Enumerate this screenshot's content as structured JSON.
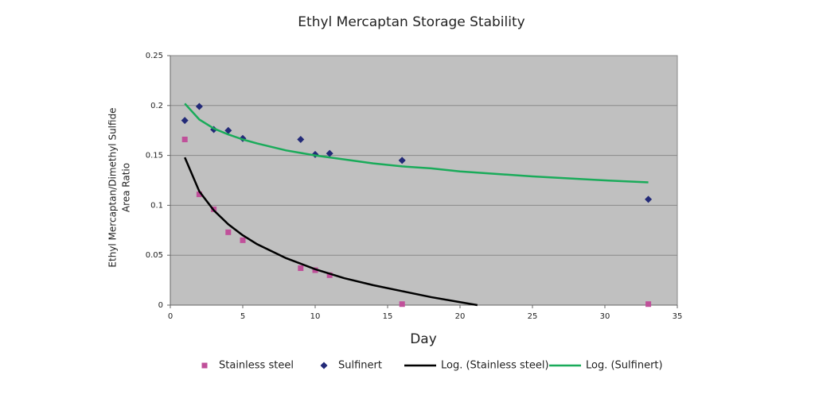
{
  "chart_data": {
    "type": "scatter",
    "title": "Ethyl Mercaptan Storage Stability",
    "xlabel": "Day",
    "ylabel": [
      "Ethyl Mercaptan/Dimethyl Sulfide",
      "Area Ratio"
    ],
    "xlim": [
      0,
      35
    ],
    "xticks": [
      0,
      5,
      10,
      15,
      20,
      25,
      30,
      35
    ],
    "ylim": [
      0,
      0.25
    ],
    "yticks": [
      0,
      0.05,
      0.1,
      0.15,
      0.2,
      0.25
    ],
    "grid": true,
    "background": "#c0c0c0",
    "legend": "bottom",
    "series": [
      {
        "name": "Stainless steel",
        "color": "#c0509a",
        "mode": "markers",
        "marker": "square",
        "x": [
          1,
          2,
          3,
          4,
          5,
          9,
          10,
          11,
          16,
          33
        ],
        "values": [
          0.166,
          0.111,
          0.096,
          0.073,
          0.065,
          0.037,
          0.035,
          0.03,
          0.001,
          0.001
        ]
      },
      {
        "name": "Sulfinert",
        "color": "#232a78",
        "mode": "markers",
        "marker": "diamond",
        "x": [
          1,
          2,
          3,
          4,
          5,
          9,
          10,
          11,
          16,
          33
        ],
        "values": [
          0.185,
          0.199,
          0.176,
          0.175,
          0.167,
          0.166,
          0.151,
          0.152,
          0.145,
          0.106
        ]
      },
      {
        "name": "Log. (Stainless steel)",
        "color": "#000000",
        "mode": "line",
        "x": [
          1,
          2,
          3,
          4,
          5,
          6,
          8,
          10,
          12,
          14,
          16,
          18,
          20,
          21.2
        ],
        "values": [
          0.148,
          0.114,
          0.095,
          0.081,
          0.07,
          0.061,
          0.047,
          0.036,
          0.027,
          0.02,
          0.014,
          0.008,
          0.003,
          0
        ]
      },
      {
        "name": "Log. (Sulfinert)",
        "color": "#1aab5a",
        "mode": "line",
        "x": [
          1,
          2,
          3,
          4,
          5,
          6,
          8,
          10,
          12,
          14,
          16,
          18,
          20,
          25,
          30,
          33
        ],
        "values": [
          0.202,
          0.186,
          0.177,
          0.171,
          0.166,
          0.162,
          0.155,
          0.15,
          0.146,
          0.142,
          0.139,
          0.137,
          0.134,
          0.129,
          0.125,
          0.123
        ]
      }
    ]
  }
}
